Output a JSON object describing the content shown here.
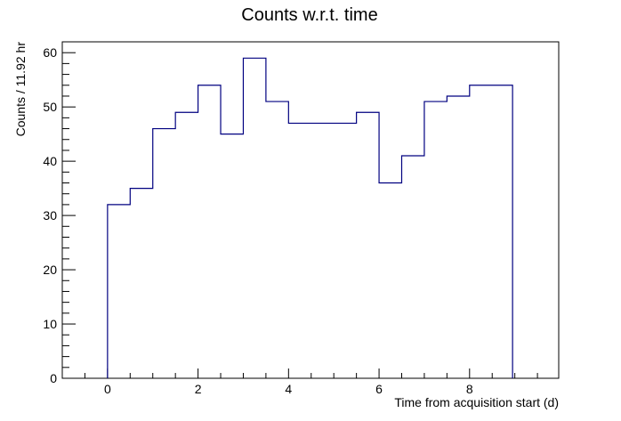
{
  "chart_data": {
    "type": "histogram",
    "title": "Counts w.r.t. time",
    "xlabel": "Time from acquisition start (d)",
    "ylabel": "Counts / 11.92 hr",
    "xlim": [
      -1,
      9.97
    ],
    "ylim": [
      0,
      62
    ],
    "x_ticks": [
      "0",
      "2",
      "4",
      "6",
      "8"
    ],
    "y_ticks": [
      "0",
      "10",
      "20",
      "30",
      "40",
      "50",
      "60"
    ],
    "line_color": "#000080",
    "grid": false,
    "bin_edges": [
      0,
      0.5,
      1.0,
      1.5,
      2.0,
      2.5,
      3.0,
      3.5,
      4.0,
      4.5,
      5.0,
      5.5,
      6.0,
      6.5,
      7.0,
      7.5,
      8.0,
      8.5,
      8.95
    ],
    "values": [
      32,
      35,
      46,
      49,
      54,
      45,
      59,
      51,
      47,
      47,
      47,
      49,
      36,
      41,
      51,
      52,
      54,
      54
    ]
  }
}
